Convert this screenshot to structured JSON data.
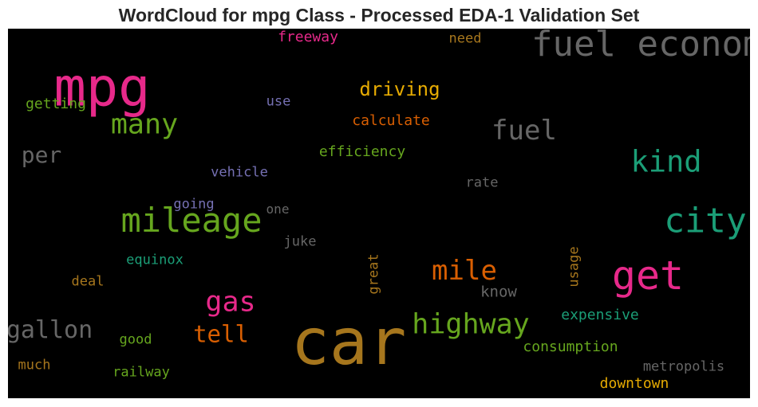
{
  "chart_data": {
    "type": "wordcloud",
    "title": "WordCloud for mpg Class - Processed EDA-1 Validation Set",
    "words": [
      {
        "text": "car",
        "weight": 1.0,
        "color": "#a6761d"
      },
      {
        "text": "mpg",
        "weight": 0.84,
        "color": "#e7298a"
      },
      {
        "text": "fuel economy",
        "weight": 0.55,
        "color": "#666666"
      },
      {
        "text": "get",
        "weight": 0.62,
        "color": "#e7298a"
      },
      {
        "text": "city",
        "weight": 0.54,
        "color": "#1b9e77"
      },
      {
        "text": "mileage",
        "weight": 0.52,
        "color": "#66a61e"
      },
      {
        "text": "kind",
        "weight": 0.46,
        "color": "#1b9e77"
      },
      {
        "text": "many",
        "weight": 0.44,
        "color": "#66a61e"
      },
      {
        "text": "fuel",
        "weight": 0.42,
        "color": "#666666"
      },
      {
        "text": "gas",
        "weight": 0.44,
        "color": "#e7298a"
      },
      {
        "text": "highway",
        "weight": 0.44,
        "color": "#66a61e"
      },
      {
        "text": "mile",
        "weight": 0.42,
        "color": "#d95f02"
      },
      {
        "text": "gallon",
        "weight": 0.38,
        "color": "#666666"
      },
      {
        "text": "tell",
        "weight": 0.36,
        "color": "#d95f02"
      },
      {
        "text": "per",
        "weight": 0.35,
        "color": "#666666"
      },
      {
        "text": "driving",
        "weight": 0.3,
        "color": "#e6ab02"
      },
      {
        "text": "calculate",
        "weight": 0.23,
        "color": "#d95f02"
      },
      {
        "text": "efficiency",
        "weight": 0.22,
        "color": "#66a61e"
      },
      {
        "text": "getting",
        "weight": 0.22,
        "color": "#66a61e"
      },
      {
        "text": "use",
        "weight": 0.21,
        "color": "#7570b3"
      },
      {
        "text": "freeway",
        "weight": 0.22,
        "color": "#e7298a"
      },
      {
        "text": "need",
        "weight": 0.21,
        "color": "#a6761d"
      },
      {
        "text": "vehicle",
        "weight": 0.21,
        "color": "#7570b3"
      },
      {
        "text": "rate",
        "weight": 0.21,
        "color": "#666666"
      },
      {
        "text": "going",
        "weight": 0.21,
        "color": "#7570b3"
      },
      {
        "text": "one",
        "weight": 0.2,
        "color": "#666666"
      },
      {
        "text": "juke",
        "weight": 0.21,
        "color": "#666666"
      },
      {
        "text": "equinox",
        "weight": 0.21,
        "color": "#1b9e77"
      },
      {
        "text": "great",
        "weight": 0.21,
        "color": "#a6761d",
        "vertical": true
      },
      {
        "text": "usage",
        "weight": 0.21,
        "color": "#a6761d",
        "vertical": true
      },
      {
        "text": "deal",
        "weight": 0.21,
        "color": "#a6761d"
      },
      {
        "text": "know",
        "weight": 0.24,
        "color": "#666666"
      },
      {
        "text": "expensive",
        "weight": 0.22,
        "color": "#1b9e77"
      },
      {
        "text": "good",
        "weight": 0.21,
        "color": "#66a61e"
      },
      {
        "text": "consumption",
        "weight": 0.22,
        "color": "#66a61e"
      },
      {
        "text": "much",
        "weight": 0.21,
        "color": "#a6761d"
      },
      {
        "text": "railway",
        "weight": 0.21,
        "color": "#66a61e"
      },
      {
        "text": "metropolis",
        "weight": 0.21,
        "color": "#666666"
      },
      {
        "text": "downtown",
        "weight": 0.22,
        "color": "#e6ab02"
      }
    ]
  }
}
